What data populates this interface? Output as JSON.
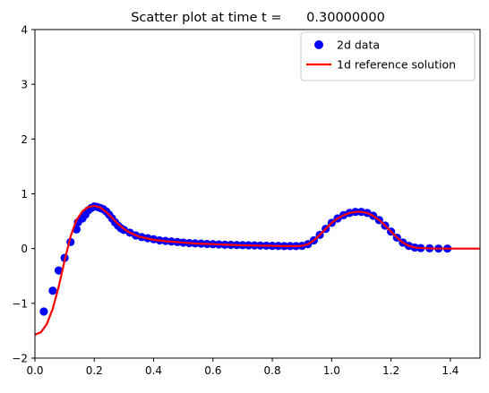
{
  "chart_data": {
    "type": "scatter",
    "title": "Scatter plot at time t =      0.30000000",
    "xlabel": "",
    "ylabel": "",
    "xlim": [
      0,
      1.5
    ],
    "ylim": [
      -2,
      4
    ],
    "xticks": [
      "0.0",
      "0.2",
      "0.4",
      "0.6",
      "0.8",
      "1.0",
      "1.2",
      "1.4"
    ],
    "yticks": [
      "−2",
      "−1",
      "0",
      "1",
      "2",
      "3",
      "4"
    ],
    "legend_position": "top-right",
    "series": [
      {
        "name": "2d data",
        "kind": "scatter",
        "color": "#0000ff",
        "points": [
          [
            0.03,
            -1.15
          ],
          [
            0.06,
            -0.77
          ],
          [
            0.08,
            -0.4
          ],
          [
            0.1,
            -0.17
          ],
          [
            0.12,
            0.12
          ],
          [
            0.14,
            0.35
          ],
          [
            0.145,
            0.48
          ],
          [
            0.16,
            0.55
          ],
          [
            0.17,
            0.62
          ],
          [
            0.18,
            0.7
          ],
          [
            0.19,
            0.74
          ],
          [
            0.2,
            0.77
          ],
          [
            0.21,
            0.76
          ],
          [
            0.22,
            0.74
          ],
          [
            0.23,
            0.72
          ],
          [
            0.24,
            0.68
          ],
          [
            0.25,
            0.62
          ],
          [
            0.26,
            0.55
          ],
          [
            0.27,
            0.48
          ],
          [
            0.28,
            0.42
          ],
          [
            0.29,
            0.37
          ],
          [
            0.3,
            0.34
          ],
          [
            0.32,
            0.29
          ],
          [
            0.34,
            0.24
          ],
          [
            0.36,
            0.21
          ],
          [
            0.38,
            0.19
          ],
          [
            0.4,
            0.17
          ],
          [
            0.42,
            0.15
          ],
          [
            0.44,
            0.14
          ],
          [
            0.46,
            0.13
          ],
          [
            0.48,
            0.12
          ],
          [
            0.5,
            0.11
          ],
          [
            0.52,
            0.1
          ],
          [
            0.54,
            0.095
          ],
          [
            0.56,
            0.09
          ],
          [
            0.58,
            0.085
          ],
          [
            0.6,
            0.08
          ],
          [
            0.62,
            0.075
          ],
          [
            0.64,
            0.07
          ],
          [
            0.66,
            0.068
          ],
          [
            0.68,
            0.065
          ],
          [
            0.7,
            0.063
          ],
          [
            0.72,
            0.06
          ],
          [
            0.74,
            0.058
          ],
          [
            0.76,
            0.055
          ],
          [
            0.78,
            0.053
          ],
          [
            0.8,
            0.05
          ],
          [
            0.82,
            0.048
          ],
          [
            0.84,
            0.046
          ],
          [
            0.86,
            0.045
          ],
          [
            0.88,
            0.045
          ],
          [
            0.9,
            0.05
          ],
          [
            0.92,
            0.08
          ],
          [
            0.94,
            0.15
          ],
          [
            0.96,
            0.25
          ],
          [
            0.98,
            0.36
          ],
          [
            1.0,
            0.47
          ],
          [
            1.02,
            0.55
          ],
          [
            1.04,
            0.61
          ],
          [
            1.06,
            0.65
          ],
          [
            1.08,
            0.67
          ],
          [
            1.1,
            0.67
          ],
          [
            1.12,
            0.65
          ],
          [
            1.14,
            0.6
          ],
          [
            1.16,
            0.52
          ],
          [
            1.18,
            0.42
          ],
          [
            1.2,
            0.31
          ],
          [
            1.22,
            0.2
          ],
          [
            1.24,
            0.11
          ],
          [
            1.26,
            0.05
          ],
          [
            1.28,
            0.02
          ],
          [
            1.3,
            0.01
          ],
          [
            1.33,
            0.005
          ],
          [
            1.36,
            0.0
          ],
          [
            1.39,
            0.0
          ]
        ]
      },
      {
        "name": "1d reference solution",
        "kind": "line",
        "color": "#ff0000",
        "points": [
          [
            0.0,
            -1.57
          ],
          [
            0.02,
            -1.53
          ],
          [
            0.04,
            -1.38
          ],
          [
            0.06,
            -1.1
          ],
          [
            0.08,
            -0.7
          ],
          [
            0.1,
            -0.22
          ],
          [
            0.12,
            0.22
          ],
          [
            0.14,
            0.52
          ],
          [
            0.16,
            0.68
          ],
          [
            0.18,
            0.76
          ],
          [
            0.2,
            0.78
          ],
          [
            0.22,
            0.75
          ],
          [
            0.24,
            0.67
          ],
          [
            0.26,
            0.56
          ],
          [
            0.28,
            0.45
          ],
          [
            0.3,
            0.36
          ],
          [
            0.32,
            0.29
          ],
          [
            0.35,
            0.22
          ],
          [
            0.4,
            0.16
          ],
          [
            0.45,
            0.13
          ],
          [
            0.5,
            0.11
          ],
          [
            0.55,
            0.09
          ],
          [
            0.6,
            0.08
          ],
          [
            0.65,
            0.07
          ],
          [
            0.7,
            0.06
          ],
          [
            0.75,
            0.055
          ],
          [
            0.8,
            0.05
          ],
          [
            0.85,
            0.045
          ],
          [
            0.88,
            0.045
          ],
          [
            0.9,
            0.05
          ],
          [
            0.92,
            0.08
          ],
          [
            0.94,
            0.15
          ],
          [
            0.96,
            0.25
          ],
          [
            0.98,
            0.36
          ],
          [
            1.0,
            0.47
          ],
          [
            1.02,
            0.55
          ],
          [
            1.04,
            0.61
          ],
          [
            1.06,
            0.65
          ],
          [
            1.08,
            0.67
          ],
          [
            1.1,
            0.67
          ],
          [
            1.12,
            0.65
          ],
          [
            1.14,
            0.6
          ],
          [
            1.16,
            0.52
          ],
          [
            1.18,
            0.42
          ],
          [
            1.2,
            0.31
          ],
          [
            1.22,
            0.2
          ],
          [
            1.24,
            0.11
          ],
          [
            1.26,
            0.05
          ],
          [
            1.28,
            0.02
          ],
          [
            1.3,
            0.01
          ],
          [
            1.35,
            0.0
          ],
          [
            1.4,
            0.0
          ],
          [
            1.45,
            0.0
          ],
          [
            1.5,
            0.0
          ]
        ]
      }
    ]
  }
}
